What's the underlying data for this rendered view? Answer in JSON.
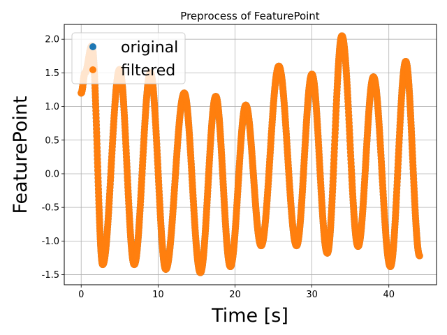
{
  "chart_data": {
    "type": "scatter",
    "title": "Preprocess of FeaturePoint",
    "xlabel": "Time [s]",
    "ylabel": "FeaturePoint",
    "xlim": [
      -2.2,
      46.2
    ],
    "ylim": [
      -1.65,
      2.22
    ],
    "xticks": [
      0,
      10,
      20,
      30,
      40
    ],
    "yticks": [
      -1.5,
      -1.0,
      -0.5,
      0.0,
      0.5,
      1.0,
      1.5,
      2.0
    ],
    "grid": true,
    "legend": {
      "position": "upper-left",
      "entries": [
        "original",
        "filtered"
      ]
    },
    "colors": {
      "original": "#1f77b4",
      "filtered": "#ff7f0e"
    },
    "extrema": {
      "x": [
        0.0,
        0.5,
        1.4,
        2.8,
        5.0,
        6.9,
        9.0,
        11.0,
        13.4,
        15.5,
        17.5,
        19.4,
        21.4,
        23.4,
        25.7,
        28.0,
        30.0,
        32.0,
        33.9,
        36.0,
        38.0,
        40.2,
        42.2,
        44.0
      ],
      "y": [
        1.2,
        1.5,
        1.9,
        -1.35,
        1.55,
        -1.35,
        1.5,
        -1.42,
        1.2,
        -1.47,
        1.15,
        -1.38,
        1.02,
        -1.07,
        1.6,
        -1.07,
        1.48,
        -1.18,
        2.05,
        -1.08,
        1.44,
        -1.38,
        1.67,
        -1.22
      ]
    },
    "series": [
      {
        "name": "original"
      },
      {
        "name": "filtered"
      }
    ]
  }
}
